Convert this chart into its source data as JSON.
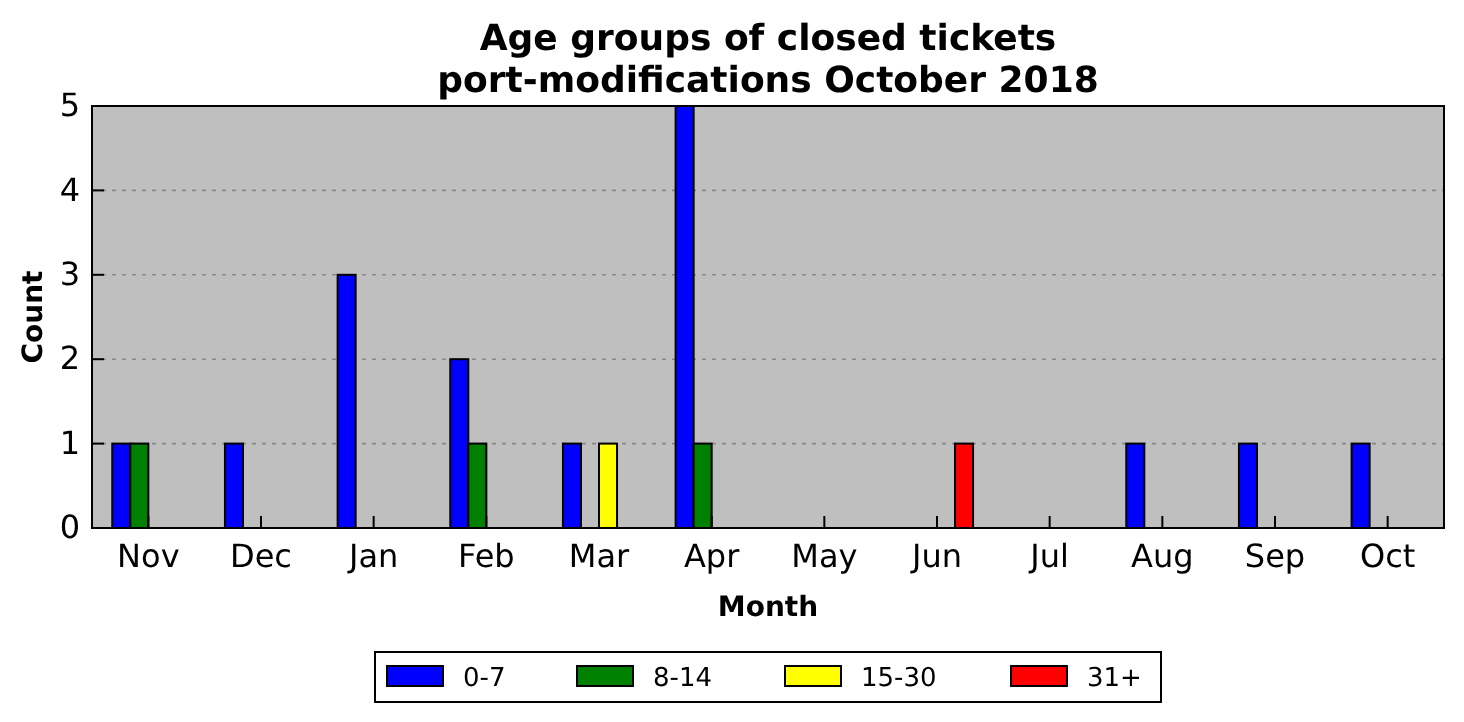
{
  "chart_data": {
    "type": "bar",
    "title": "Age groups of closed tickets\nport-modifications October 2018",
    "xlabel": "Month",
    "ylabel": "Count",
    "categories": [
      "Nov",
      "Dec",
      "Jan",
      "Feb",
      "Mar",
      "Apr",
      "May",
      "Jun",
      "Jul",
      "Aug",
      "Sep",
      "Oct"
    ],
    "series": [
      {
        "name": "0-7",
        "color": "#0000ff",
        "values": [
          1,
          1,
          3,
          2,
          1,
          5,
          0,
          0,
          0,
          1,
          1,
          1
        ]
      },
      {
        "name": "8-14",
        "color": "#008000",
        "values": [
          1,
          0,
          0,
          1,
          0,
          1,
          0,
          0,
          0,
          0,
          0,
          0
        ]
      },
      {
        "name": "15-30",
        "color": "#ffff00",
        "values": [
          0,
          0,
          0,
          0,
          1,
          0,
          0,
          0,
          0,
          0,
          0,
          0
        ]
      },
      {
        "name": "31+",
        "color": "#ff0000",
        "values": [
          0,
          0,
          0,
          0,
          0,
          0,
          0,
          1,
          0,
          0,
          0,
          0
        ]
      }
    ],
    "ylim": [
      0,
      5
    ],
    "yticks": [
      0,
      1,
      2,
      3,
      4,
      5
    ],
    "grid": "y",
    "legend": "bottom"
  }
}
